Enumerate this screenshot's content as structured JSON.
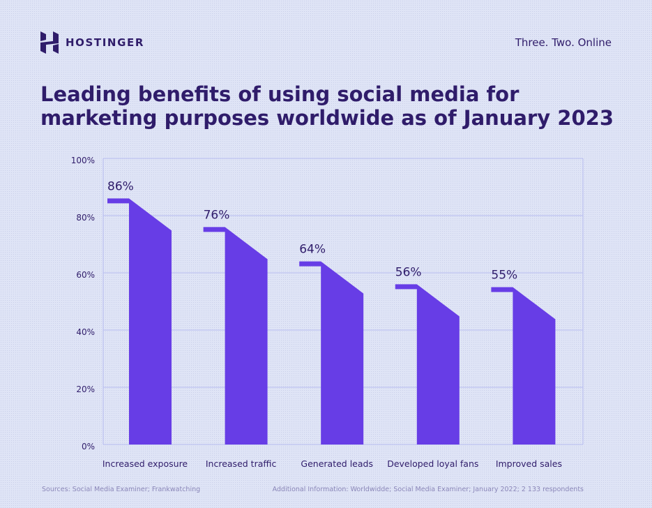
{
  "header": {
    "brand": "HOSTINGER",
    "logo_icon": "hostinger-logo-icon",
    "tagline": "Three. Two. Online"
  },
  "title": "Leading benefits of using social media for marketing purposes worldwide as of January 2023",
  "colors": {
    "bar": "#673de6",
    "text": "#2f1c6a",
    "grid": "#b7bdf0",
    "muted": "#8a86b8"
  },
  "chart_data": {
    "type": "bar",
    "categories": [
      "Increased exposure",
      "Increased traffic",
      "Generated leads",
      "Developed loyal fans",
      "Improved sales"
    ],
    "values": [
      86,
      76,
      64,
      56,
      55
    ],
    "value_labels": [
      "86%",
      "76%",
      "64%",
      "56%",
      "55%"
    ],
    "ylim": [
      0,
      100
    ],
    "yticks": [
      0,
      20,
      40,
      60,
      80,
      100
    ],
    "ytick_labels": [
      "0%",
      "20%",
      "40%",
      "60%",
      "80%",
      "100%"
    ],
    "title": "Leading benefits of using social media for marketing purposes worldwide as of January 2023",
    "xlabel": "",
    "ylabel": "",
    "grid": true,
    "legend": "none"
  },
  "footer": {
    "sources": "Sources: Social Media Examiner; Frankwatching",
    "additional": "Additional Information: Worldwidde; Social Media Examiner; January 2022; 2 133 respondents"
  }
}
